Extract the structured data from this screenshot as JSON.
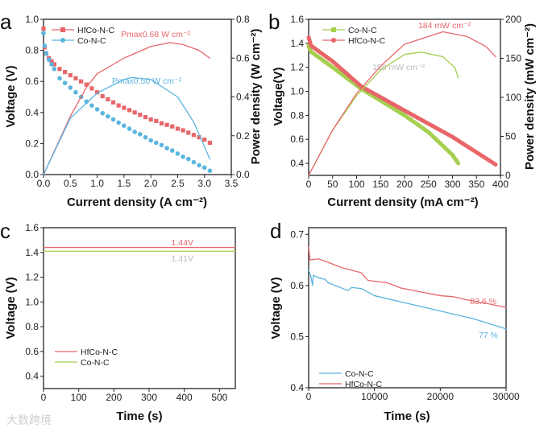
{
  "colors": {
    "hfco": "#e8666a",
    "co_blue": "#5bb5e0",
    "co_green": "#a5cf4e",
    "annot_gray": "#bcbcbc"
  },
  "watermark": "大数跨境",
  "chart_data": [
    {
      "id": "a",
      "letter": "a",
      "type": "line",
      "xlabel": "Current density (A cm⁻²)",
      "ylabel": "Voltage (V)",
      "y2label": "Power density (W cm⁻²)",
      "xlim": [
        0,
        3.5
      ],
      "ylim": [
        0,
        1.0
      ],
      "y2lim": [
        0,
        0.8
      ],
      "xticks": [
        "0.0",
        "0.5",
        "1.0",
        "1.5",
        "2.0",
        "2.5",
        "3.0",
        "3.5"
      ],
      "yticks": [
        "0.0",
        "0.2",
        "0.4",
        "0.6",
        "0.8",
        "1.0"
      ],
      "y2ticks": [
        "0.0",
        "0.2",
        "0.4",
        "0.6",
        "0.8"
      ],
      "legend": [
        {
          "label": "HfCo-N-C",
          "marker": "square",
          "color": "#e8666a"
        },
        {
          "label": "Co-N-C",
          "marker": "circle",
          "color": "#5bb5e0"
        }
      ],
      "annotations": [
        {
          "text": "Pmax0.68 W cm⁻²",
          "color": "#e8666a"
        },
        {
          "text": "Pmax0.50 W cm⁻²",
          "color": "#5bb5e0"
        }
      ],
      "x_polarization": [
        0,
        0.02,
        0.05,
        0.1,
        0.15,
        0.2,
        0.3,
        0.4,
        0.5,
        0.6,
        0.7,
        0.8,
        0.9,
        1.0,
        1.1,
        1.2,
        1.3,
        1.4,
        1.5,
        1.6,
        1.7,
        1.8,
        1.9,
        2.0,
        2.1,
        2.2,
        2.3,
        2.4,
        2.5,
        2.6,
        2.7,
        2.8,
        2.9,
        3.0,
        3.1
      ],
      "series": [
        {
          "name": "HfCo-N-C voltage",
          "axis": "left",
          "style": "square",
          "color": "#e8666a",
          "values": [
            0.94,
            0.82,
            0.78,
            0.75,
            0.73,
            0.71,
            0.68,
            0.66,
            0.64,
            0.62,
            0.6,
            0.58,
            0.555,
            0.53,
            0.505,
            0.485,
            0.465,
            0.445,
            0.43,
            0.415,
            0.4,
            0.385,
            0.37,
            0.355,
            0.345,
            0.33,
            0.32,
            0.31,
            0.295,
            0.285,
            0.27,
            0.255,
            0.24,
            0.225,
            0.205
          ]
        },
        {
          "name": "Co-N-C voltage",
          "axis": "left",
          "style": "circle",
          "color": "#5bb5e0",
          "values": [
            0.91,
            0.83,
            0.78,
            0.74,
            0.71,
            0.68,
            0.62,
            0.59,
            0.56,
            0.53,
            0.5,
            0.47,
            0.445,
            0.42,
            0.395,
            0.375,
            0.355,
            0.335,
            0.315,
            0.295,
            0.275,
            0.26,
            0.24,
            0.22,
            0.205,
            0.19,
            0.17,
            0.155,
            0.135,
            0.115,
            0.1,
            0.08,
            0.06,
            0.045,
            0.025
          ]
        },
        {
          "name": "HfCo-N-C power",
          "axis": "right",
          "style": "line",
          "color": "#e8666a",
          "points": [
            [
              0,
              0
            ],
            [
              0.5,
              0.3
            ],
            [
              0.8,
              0.45
            ],
            [
              1.0,
              0.52
            ],
            [
              1.5,
              0.6
            ],
            [
              2.0,
              0.66
            ],
            [
              2.35,
              0.68
            ],
            [
              2.6,
              0.67
            ],
            [
              2.9,
              0.64
            ],
            [
              3.1,
              0.6
            ]
          ]
        },
        {
          "name": "Co-N-C power",
          "axis": "right",
          "style": "line",
          "color": "#5bb5e0",
          "points": [
            [
              0,
              0
            ],
            [
              0.5,
              0.29
            ],
            [
              1.0,
              0.42
            ],
            [
              1.5,
              0.49
            ],
            [
              1.65,
              0.5
            ],
            [
              2.0,
              0.49
            ],
            [
              2.5,
              0.4
            ],
            [
              2.8,
              0.27
            ],
            [
              3.1,
              0.08
            ]
          ]
        }
      ]
    },
    {
      "id": "b",
      "letter": "b",
      "type": "line",
      "xlabel": "Current density (mA cm⁻²)",
      "ylabel": "Voltage(V)",
      "y2label": "Power density (mW cm⁻²)",
      "xlim": [
        0,
        400
      ],
      "ylim": [
        0.3,
        1.6
      ],
      "y2lim": [
        0,
        200
      ],
      "xticks": [
        "0",
        "50",
        "100",
        "150",
        "200",
        "250",
        "300",
        "350",
        "400"
      ],
      "yticks": [
        "0.4",
        "0.6",
        "0.8",
        "1.0",
        "1.2",
        "1.4",
        "1.6"
      ],
      "y2ticks": [
        "0",
        "50",
        "100",
        "150",
        "200"
      ],
      "legend": [
        {
          "label": "Co-N-C",
          "marker": "square",
          "color": "#a5cf4e"
        },
        {
          "label": "HfCo-N-C",
          "marker": "circle",
          "color": "#e8666a"
        }
      ],
      "annotations": [
        {
          "text": "184 mW cm⁻²",
          "color": "#e8666a"
        },
        {
          "text": "158 mW cm⁻²",
          "color": "#bcbcbc"
        }
      ],
      "series": [
        {
          "name": "Co-N-C voltage",
          "axis": "left",
          "style": "thick",
          "color": "#a5cf4e",
          "points": [
            [
              0,
              1.38
            ],
            [
              5,
              1.33
            ],
            [
              50,
              1.2
            ],
            [
              110,
              1.02
            ],
            [
              200,
              0.8
            ],
            [
              250,
              0.66
            ],
            [
              300,
              0.47
            ],
            [
              312,
              0.4
            ]
          ]
        },
        {
          "name": "HfCo-N-C voltage",
          "axis": "left",
          "style": "thick",
          "color": "#e8666a",
          "points": [
            [
              0,
              1.45
            ],
            [
              5,
              1.38
            ],
            [
              50,
              1.25
            ],
            [
              110,
              1.04
            ],
            [
              200,
              0.84
            ],
            [
              300,
              0.62
            ],
            [
              390,
              0.39
            ]
          ]
        },
        {
          "name": "Co-N-C power",
          "axis": "right",
          "style": "line",
          "color": "#a5cf4e",
          "points": [
            [
              0,
              0
            ],
            [
              50,
              58
            ],
            [
              100,
              102
            ],
            [
              150,
              135
            ],
            [
              200,
              155
            ],
            [
              235,
              158
            ],
            [
              280,
              152
            ],
            [
              305,
              138
            ],
            [
              312,
              125
            ]
          ]
        },
        {
          "name": "HfCo-N-C power",
          "axis": "right",
          "style": "line",
          "color": "#e8666a",
          "points": [
            [
              0,
              0
            ],
            [
              50,
              58
            ],
            [
              100,
              105
            ],
            [
              150,
              140
            ],
            [
              200,
              168
            ],
            [
              280,
              184
            ],
            [
              330,
              178
            ],
            [
              370,
              165
            ],
            [
              390,
              152
            ]
          ]
        }
      ]
    },
    {
      "id": "c",
      "letter": "c",
      "type": "line",
      "xlabel": "Time (s)",
      "ylabel": "Voltage (V)",
      "xlim": [
        0,
        545
      ],
      "ylim": [
        0.3,
        1.6
      ],
      "xticks": [
        "0",
        "100",
        "200",
        "300",
        "400",
        "500"
      ],
      "yticks": [
        "0.4",
        "0.6",
        "0.8",
        "1.0",
        "1.2",
        "1.4",
        "1.6"
      ],
      "legend": [
        {
          "label": "HfCo-N-C",
          "marker": "line",
          "color": "#e8666a"
        },
        {
          "label": "Co-N-C",
          "marker": "line",
          "color": "#a5cf4e"
        }
      ],
      "annotations": [
        {
          "text": "1.44V",
          "color": "#e8666a"
        },
        {
          "text": "1.41V",
          "color": "#bcbcbc"
        }
      ],
      "series": [
        {
          "name": "HfCo-N-C",
          "axis": "left",
          "style": "line",
          "color": "#e8666a",
          "points": [
            [
              0,
              1.44
            ],
            [
              545,
              1.44
            ]
          ]
        },
        {
          "name": "Co-N-C",
          "axis": "left",
          "style": "line",
          "color": "#a5cf4e",
          "points": [
            [
              0,
              1.41
            ],
            [
              545,
              1.41
            ]
          ]
        }
      ]
    },
    {
      "id": "d",
      "letter": "d",
      "type": "line",
      "xlabel": "Time (s)",
      "ylabel": "Voltage (V)",
      "xlim": [
        0,
        30000
      ],
      "ylim": [
        0.4,
        0.713
      ],
      "xticks": [
        "0",
        "10000",
        "20000",
        "30000"
      ],
      "yticks": [
        "0.4",
        "0.5",
        "0.6",
        "0.7"
      ],
      "legend": [
        {
          "label": "Co-N-C",
          "marker": "line",
          "color": "#5bb5e0"
        },
        {
          "label": "HfCo-N-C",
          "marker": "line",
          "color": "#e8666a"
        }
      ],
      "annotations": [
        {
          "text": "83.6 %",
          "color": "#e8666a"
        },
        {
          "text": "77 %",
          "color": "#5bb5e0"
        }
      ],
      "series": [
        {
          "name": "Co-N-C",
          "axis": "left",
          "style": "line",
          "color": "#5bb5e0",
          "points": [
            [
              0,
              0.63
            ],
            [
              300,
              0.62
            ],
            [
              600,
              0.6
            ],
            [
              700,
              0.62
            ],
            [
              1500,
              0.615
            ],
            [
              2500,
              0.612
            ],
            [
              3000,
              0.605
            ],
            [
              6000,
              0.59
            ],
            [
              6500,
              0.596
            ],
            [
              8000,
              0.594
            ],
            [
              10000,
              0.58
            ],
            [
              15000,
              0.565
            ],
            [
              20000,
              0.55
            ],
            [
              25000,
              0.535
            ],
            [
              30000,
              0.515
            ]
          ]
        },
        {
          "name": "HfCo-N-C",
          "axis": "left",
          "style": "line",
          "color": "#e8666a",
          "points": [
            [
              0,
              0.675
            ],
            [
              200,
              0.65
            ],
            [
              1500,
              0.652
            ],
            [
              3000,
              0.645
            ],
            [
              4000,
              0.64
            ],
            [
              5000,
              0.635
            ],
            [
              8000,
              0.625
            ],
            [
              9000,
              0.61
            ],
            [
              12000,
              0.605
            ],
            [
              14000,
              0.595
            ],
            [
              16000,
              0.59
            ],
            [
              18000,
              0.585
            ],
            [
              20000,
              0.58
            ],
            [
              22000,
              0.578
            ],
            [
              24000,
              0.572
            ],
            [
              27000,
              0.565
            ],
            [
              30000,
              0.557
            ]
          ]
        }
      ]
    }
  ]
}
